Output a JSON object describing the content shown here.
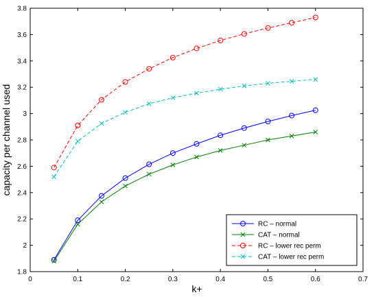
{
  "chart_data": {
    "type": "line",
    "title": "",
    "xlabel": "k+",
    "ylabel": "capacity per channel used",
    "xlim": [
      0,
      0.7
    ],
    "ylim": [
      1.8,
      3.8
    ],
    "x_ticks": [
      "0",
      "0.1",
      "0.2",
      "0.3",
      "0.4",
      "0.5",
      "0.6",
      "0.7"
    ],
    "y_ticks": [
      "1.8",
      "2",
      "2.2",
      "2.4",
      "2.6",
      "2.8",
      "3",
      "3.2",
      "3.4",
      "3.6",
      "3.8"
    ],
    "grid": false,
    "legend_position": "bottom-right",
    "x": [
      0.05,
      0.1,
      0.15,
      0.2,
      0.25,
      0.3,
      0.35,
      0.4,
      0.45,
      0.5,
      0.55,
      0.6
    ],
    "series": [
      {
        "name": "RC – normal",
        "color": "#0000ff",
        "line": "solid",
        "marker": "circle",
        "values": [
          1.89,
          2.19,
          2.375,
          2.51,
          2.615,
          2.7,
          2.77,
          2.835,
          2.89,
          2.94,
          2.985,
          3.025
        ]
      },
      {
        "name": "CAT – normal",
        "color": "#008000",
        "line": "solid",
        "marker": "x",
        "values": [
          1.88,
          2.16,
          2.33,
          2.45,
          2.54,
          2.61,
          2.67,
          2.72,
          2.76,
          2.8,
          2.83,
          2.86
        ]
      },
      {
        "name": "RC – lower rec perm",
        "color": "#ff0000",
        "line": "dashed",
        "marker": "circle",
        "values": [
          2.59,
          2.91,
          3.105,
          3.24,
          3.34,
          3.425,
          3.495,
          3.555,
          3.605,
          3.65,
          3.69,
          3.73
        ]
      },
      {
        "name": "CAT – lower rec perm",
        "color": "#00bfbf",
        "line": "dashed",
        "marker": "x",
        "values": [
          2.52,
          2.79,
          2.925,
          3.01,
          3.075,
          3.12,
          3.155,
          3.185,
          3.21,
          3.23,
          3.245,
          3.26
        ]
      }
    ]
  }
}
